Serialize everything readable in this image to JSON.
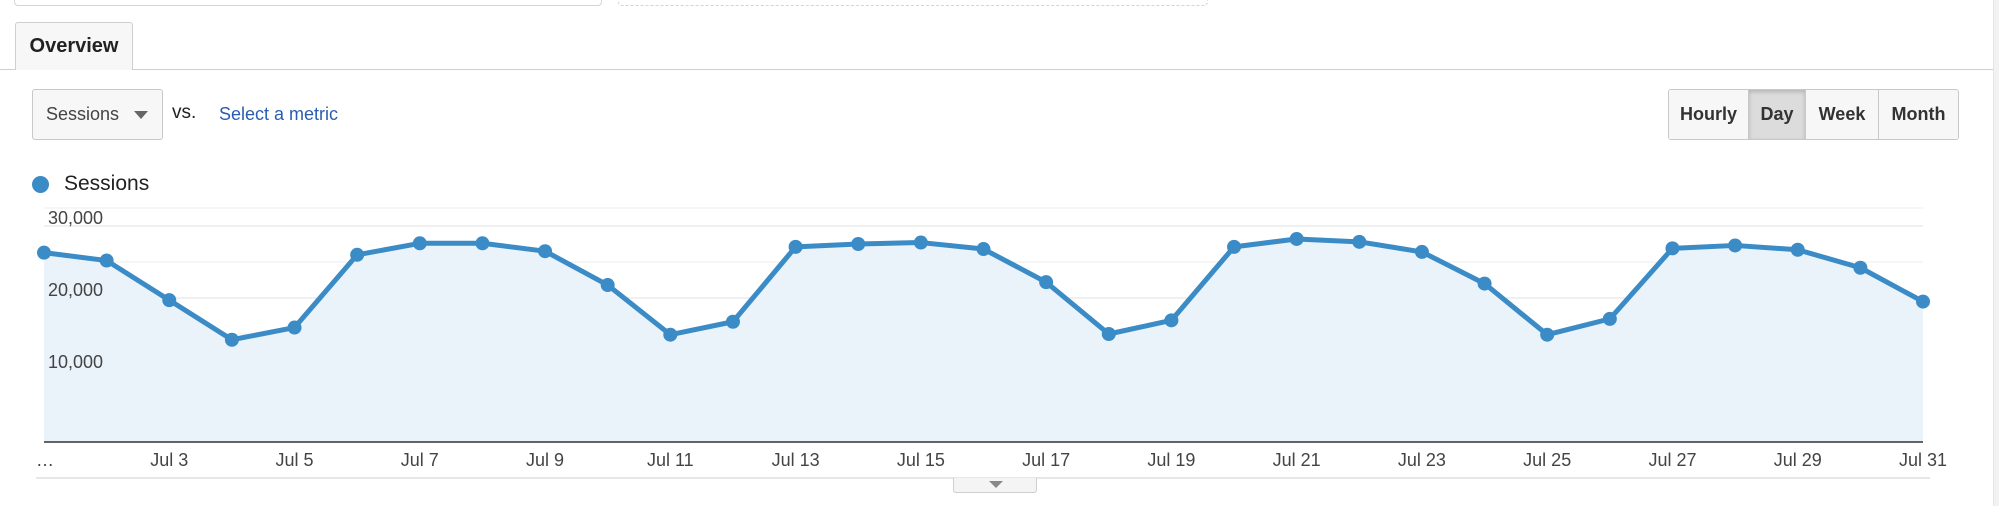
{
  "tabs": [
    {
      "label": "Overview"
    }
  ],
  "metric_selector": {
    "selected": "Sessions"
  },
  "vs_label": "vs.",
  "select_metric_link": "Select a metric",
  "granularity": {
    "buttons": [
      {
        "label": "Hourly",
        "active": false
      },
      {
        "label": "Day",
        "active": true
      },
      {
        "label": "Week",
        "active": false
      },
      {
        "label": "Month",
        "active": false
      }
    ]
  },
  "colors": {
    "series": "#3b8bc6",
    "area": "#eaf2fa",
    "grid": "#e6e6e6",
    "axis": "#333333"
  },
  "chart_data": {
    "type": "area",
    "title": "",
    "legend": [
      {
        "name": "Sessions",
        "color": "#3b8bc6"
      }
    ],
    "legend_position": "top-left",
    "grid": true,
    "ylim": [
      0,
      30000
    ],
    "yticks": [
      {
        "value": 10000,
        "label": "10,000"
      },
      {
        "value": 20000,
        "label": "20,000"
      },
      {
        "value": 30000,
        "label": "30,000"
      }
    ],
    "x": [
      "Jul 1",
      "Jul 2",
      "Jul 3",
      "Jul 4",
      "Jul 5",
      "Jul 6",
      "Jul 7",
      "Jul 8",
      "Jul 9",
      "Jul 10",
      "Jul 11",
      "Jul 12",
      "Jul 13",
      "Jul 14",
      "Jul 15",
      "Jul 16",
      "Jul 17",
      "Jul 18",
      "Jul 19",
      "Jul 20",
      "Jul 21",
      "Jul 22",
      "Jul 23",
      "Jul 24",
      "Jul 25",
      "Jul 26",
      "Jul 27",
      "Jul 28",
      "Jul 29",
      "Jul 30",
      "Jul 31"
    ],
    "xtick_labels": [
      "…",
      "Jul 3",
      "Jul 5",
      "Jul 7",
      "Jul 9",
      "Jul 11",
      "Jul 13",
      "Jul 15",
      "Jul 17",
      "Jul 19",
      "Jul 21",
      "Jul 23",
      "Jul 25",
      "Jul 27",
      "Jul 29",
      "Jul 31"
    ],
    "series": [
      {
        "name": "Sessions",
        "values": [
          26300,
          25200,
          19700,
          14200,
          15900,
          26000,
          27600,
          27600,
          26500,
          21800,
          14900,
          16700,
          27100,
          27500,
          27700,
          26800,
          22200,
          15000,
          16900,
          27100,
          28200,
          27800,
          26400,
          22000,
          14900,
          17100,
          26900,
          27300,
          26700,
          24200,
          19500
        ]
      }
    ]
  }
}
